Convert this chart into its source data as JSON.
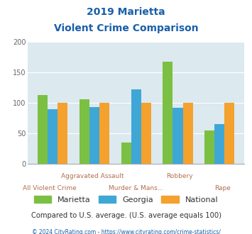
{
  "title_line1": "2019 Marietta",
  "title_line2": "Violent Crime Comparison",
  "categories": [
    "All Violent Crime",
    "Aggravated Assault",
    "Murder & Mans...",
    "Robbery",
    "Rape"
  ],
  "marietta": [
    113,
    106,
    35,
    168,
    55
  ],
  "georgia": [
    90,
    93,
    122,
    92,
    65
  ],
  "national": [
    100,
    100,
    100,
    100,
    100
  ],
  "color_marietta": "#7bc043",
  "color_georgia": "#3fa7d6",
  "color_national": "#f4a12e",
  "ylim": [
    0,
    200
  ],
  "yticks": [
    0,
    50,
    100,
    150,
    200
  ],
  "bg_color": "#dce9ef",
  "subtitle_note": "Compared to U.S. average. (U.S. average equals 100)",
  "footer": "© 2024 CityRating.com - https://www.cityrating.com/crime-statistics/",
  "title_color": "#1a5fa8",
  "subtitle_color": "#333333",
  "footer_color": "#1a5fa8",
  "xlabel_color": "#b07050",
  "legend_color": "#333333",
  "label_top_row": [
    "",
    "Aggravated Assault",
    "",
    "Robbery",
    ""
  ],
  "label_bot_row": [
    "All Violent Crime",
    "",
    "Murder & Mans...",
    "",
    "Rape"
  ]
}
